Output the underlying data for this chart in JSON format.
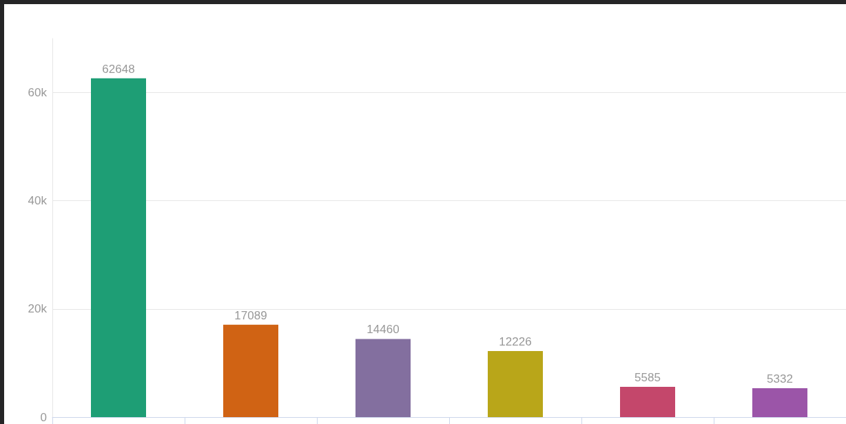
{
  "chart_data": {
    "type": "bar",
    "categories": [
      null,
      null,
      null,
      null,
      null,
      null
    ],
    "values": [
      62648,
      17089,
      14460,
      12226,
      5585,
      5332
    ],
    "colors": [
      "#1e9e75",
      "#d06314",
      "#836f9f",
      "#b9a619",
      "#c4476b",
      "#9b55a8"
    ],
    "ylim": [
      0,
      70000
    ],
    "yticks": [
      0,
      {
        "value": 20000,
        "label": "20k"
      },
      {
        "value": 40000,
        "label": "40k"
      },
      {
        "value": 60000,
        "label": "60k"
      }
    ],
    "grid": "y",
    "data_labels": true
  }
}
